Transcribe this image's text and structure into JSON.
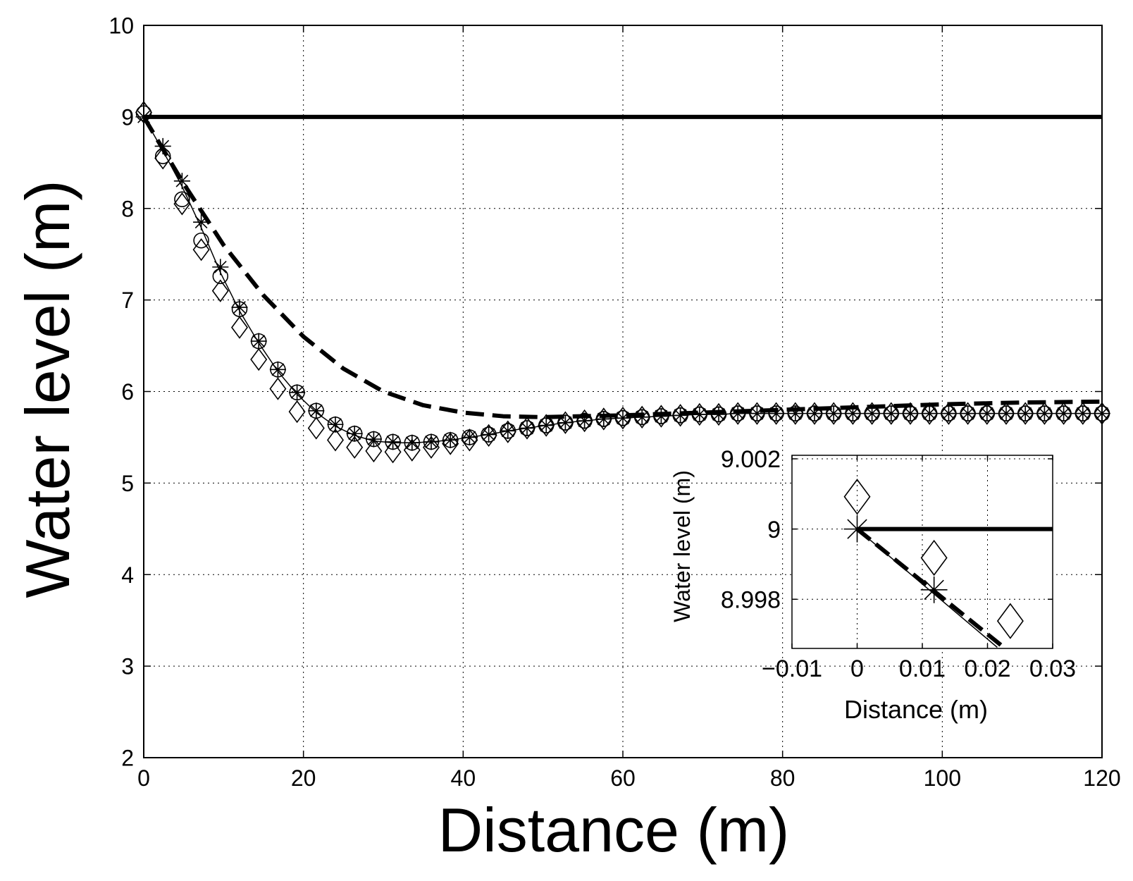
{
  "chart_data": [
    {
      "type": "line",
      "title": "",
      "xlabel": "Distance (m)",
      "ylabel": "Water level (m)",
      "xlim": [
        0,
        120
      ],
      "ylim": [
        2,
        10
      ],
      "xticks": [
        0,
        20,
        40,
        60,
        80,
        100,
        120
      ],
      "yticks": [
        2,
        3,
        4,
        5,
        6,
        7,
        8,
        9,
        10
      ],
      "grid": true,
      "series": [
        {
          "name": "initial level",
          "style": "thick-solid",
          "x": [
            0,
            120
          ],
          "y": [
            9,
            9
          ]
        },
        {
          "name": "dashed",
          "style": "thick-dashed",
          "x": [
            0,
            5,
            10,
            15,
            20,
            25,
            30,
            35,
            40,
            45,
            50,
            60,
            70,
            80,
            90,
            100,
            110,
            120
          ],
          "y": [
            9.0,
            8.27,
            7.6,
            7.05,
            6.6,
            6.25,
            6.0,
            5.85,
            5.77,
            5.73,
            5.72,
            5.74,
            5.77,
            5.8,
            5.83,
            5.86,
            5.88,
            5.89
          ]
        },
        {
          "name": "thin line",
          "style": "thin-solid",
          "x": [
            0,
            2.4,
            4.8,
            7.2,
            9.6,
            12,
            14.4,
            16.8,
            19.2,
            21.6,
            24,
            26.4,
            28.8,
            31.2,
            33.6,
            36,
            38.4,
            40.8,
            43.2,
            45.6,
            48,
            50.4,
            52.8,
            55.2,
            57.6,
            60,
            62.4,
            64.8,
            67.2,
            69.6,
            72,
            74.4,
            76.8,
            79.2,
            81.6,
            84,
            86.4,
            88.8,
            91.2,
            93.6,
            96,
            98.4,
            100.8,
            103.2,
            105.6,
            108,
            110.4,
            112.8,
            115.2,
            117.6,
            120
          ],
          "y": [
            9.0,
            8.63,
            8.24,
            7.79,
            7.3,
            6.88,
            6.53,
            6.22,
            5.97,
            5.77,
            5.62,
            5.52,
            5.46,
            5.44,
            5.44,
            5.45,
            5.47,
            5.5,
            5.53,
            5.57,
            5.6,
            5.63,
            5.66,
            5.68,
            5.7,
            5.71,
            5.72,
            5.73,
            5.74,
            5.75,
            5.75,
            5.76,
            5.76,
            5.76,
            5.76,
            5.76,
            5.76,
            5.76,
            5.76,
            5.76,
            5.76,
            5.76,
            5.76,
            5.76,
            5.76,
            5.76,
            5.76,
            5.76,
            5.76,
            5.76,
            5.76
          ]
        },
        {
          "name": "asterisk markers",
          "style": "marker-asterisk",
          "x": [
            0,
            2.4,
            4.8,
            7.2,
            9.6,
            12,
            14.4,
            16.8,
            19.2,
            21.6,
            24,
            26.4,
            28.8,
            31.2,
            33.6,
            36,
            38.4,
            40.8,
            43.2,
            45.6,
            48,
            50.4,
            52.8,
            55.2,
            57.6,
            60,
            62.4,
            64.8,
            67.2,
            69.6,
            72,
            74.4,
            76.8,
            79.2,
            81.6,
            84,
            86.4,
            88.8,
            91.2,
            93.6,
            96,
            98.4,
            100.8,
            103.2,
            105.6,
            108,
            110.4,
            112.8,
            115.2,
            117.6,
            120
          ],
          "y": [
            9.0,
            8.68,
            8.3,
            7.85,
            7.36,
            6.92,
            6.55,
            6.24,
            5.99,
            5.79,
            5.64,
            5.54,
            5.48,
            5.45,
            5.44,
            5.45,
            5.47,
            5.5,
            5.53,
            5.57,
            5.6,
            5.63,
            5.66,
            5.68,
            5.7,
            5.71,
            5.72,
            5.73,
            5.74,
            5.75,
            5.75,
            5.76,
            5.76,
            5.76,
            5.76,
            5.76,
            5.76,
            5.76,
            5.76,
            5.76,
            5.76,
            5.76,
            5.76,
            5.76,
            5.76,
            5.76,
            5.76,
            5.76,
            5.76,
            5.76,
            5.76
          ]
        },
        {
          "name": "circle markers",
          "style": "marker-circle",
          "x": [
            0,
            2.4,
            4.8,
            7.2,
            9.6,
            12,
            14.4,
            16.8,
            19.2,
            21.6,
            24,
            26.4,
            28.8,
            31.2,
            33.6,
            36,
            38.4,
            40.8,
            43.2,
            45.6,
            48,
            50.4,
            52.8,
            55.2,
            57.6,
            60,
            62.4,
            64.8,
            67.2,
            69.6,
            72,
            74.4,
            76.8,
            79.2,
            81.6,
            84,
            86.4,
            88.8,
            91.2,
            93.6,
            96,
            98.4,
            100.8,
            103.2,
            105.6,
            108,
            110.4,
            112.8,
            115.2,
            117.6,
            120
          ],
          "y": [
            9.04,
            8.57,
            8.1,
            7.65,
            7.26,
            6.9,
            6.55,
            6.24,
            5.99,
            5.79,
            5.64,
            5.54,
            5.48,
            5.45,
            5.44,
            5.45,
            5.47,
            5.5,
            5.53,
            5.57,
            5.6,
            5.63,
            5.66,
            5.68,
            5.7,
            5.71,
            5.72,
            5.73,
            5.74,
            5.75,
            5.75,
            5.76,
            5.76,
            5.76,
            5.76,
            5.76,
            5.76,
            5.76,
            5.76,
            5.76,
            5.76,
            5.76,
            5.76,
            5.76,
            5.76,
            5.76,
            5.76,
            5.76,
            5.76,
            5.76,
            5.76
          ]
        },
        {
          "name": "diamond markers",
          "style": "marker-diamond",
          "x": [
            0,
            2.4,
            4.8,
            7.2,
            9.6,
            12,
            14.4,
            16.8,
            19.2,
            21.6,
            24,
            26.4,
            28.8,
            31.2,
            33.6,
            36,
            38.4,
            40.8,
            43.2,
            45.6,
            48,
            50.4,
            52.8,
            55.2,
            57.6,
            60,
            62.4,
            64.8,
            67.2,
            69.6,
            72,
            74.4,
            76.8,
            79.2,
            81.6,
            84,
            86.4,
            88.8,
            91.2,
            93.6,
            96,
            98.4,
            100.8,
            103.2,
            105.6,
            108,
            110.4,
            112.8,
            115.2,
            117.6,
            120
          ],
          "y": [
            9.05,
            8.55,
            8.05,
            7.55,
            7.1,
            6.7,
            6.35,
            6.03,
            5.78,
            5.6,
            5.47,
            5.39,
            5.35,
            5.34,
            5.36,
            5.39,
            5.43,
            5.47,
            5.52,
            5.56,
            5.6,
            5.63,
            5.66,
            5.68,
            5.7,
            5.71,
            5.72,
            5.73,
            5.74,
            5.75,
            5.75,
            5.76,
            5.76,
            5.76,
            5.76,
            5.76,
            5.76,
            5.76,
            5.76,
            5.76,
            5.76,
            5.76,
            5.76,
            5.76,
            5.76,
            5.76,
            5.76,
            5.76,
            5.76,
            5.76,
            5.76
          ]
        }
      ]
    },
    {
      "type": "line",
      "title": "",
      "xlabel": "Distance (m)",
      "ylabel": "Water level (m)",
      "xlim": [
        -0.01,
        0.03
      ],
      "ylim": [
        8.9966,
        9.0021
      ],
      "xticks": [
        -0.01,
        0,
        0.01,
        0.02,
        0.03
      ],
      "xtick_labels": [
        "−0.01",
        "0",
        "0.01",
        "0.02",
        "0.03"
      ],
      "yticks": [
        8.998,
        9,
        9.002
      ],
      "ytick_labels": [
        "8.998",
        "9",
        "9.002"
      ],
      "grid": true,
      "series": [
        {
          "name": "initial level",
          "style": "thick-solid",
          "x": [
            0,
            0.03
          ],
          "y": [
            9.0,
            9.0
          ]
        },
        {
          "name": "dashed",
          "style": "thick-dashed",
          "x": [
            0,
            0.0225
          ],
          "y": [
            9.0,
            8.99663
          ]
        },
        {
          "name": "thin line",
          "style": "thin-solid",
          "x": [
            0,
            0.0215
          ],
          "y": [
            9.0,
            8.99663
          ]
        },
        {
          "name": "asterisk markers",
          "style": "marker-asterisk",
          "x": [
            0,
            0.0118
          ],
          "y": [
            9.0,
            8.99827
          ]
        },
        {
          "name": "diamond markers",
          "style": "marker-diamond",
          "x": [
            0,
            0.0118,
            0.0235
          ],
          "y": [
            9.00092,
            8.99918,
            8.99738
          ]
        }
      ]
    }
  ]
}
